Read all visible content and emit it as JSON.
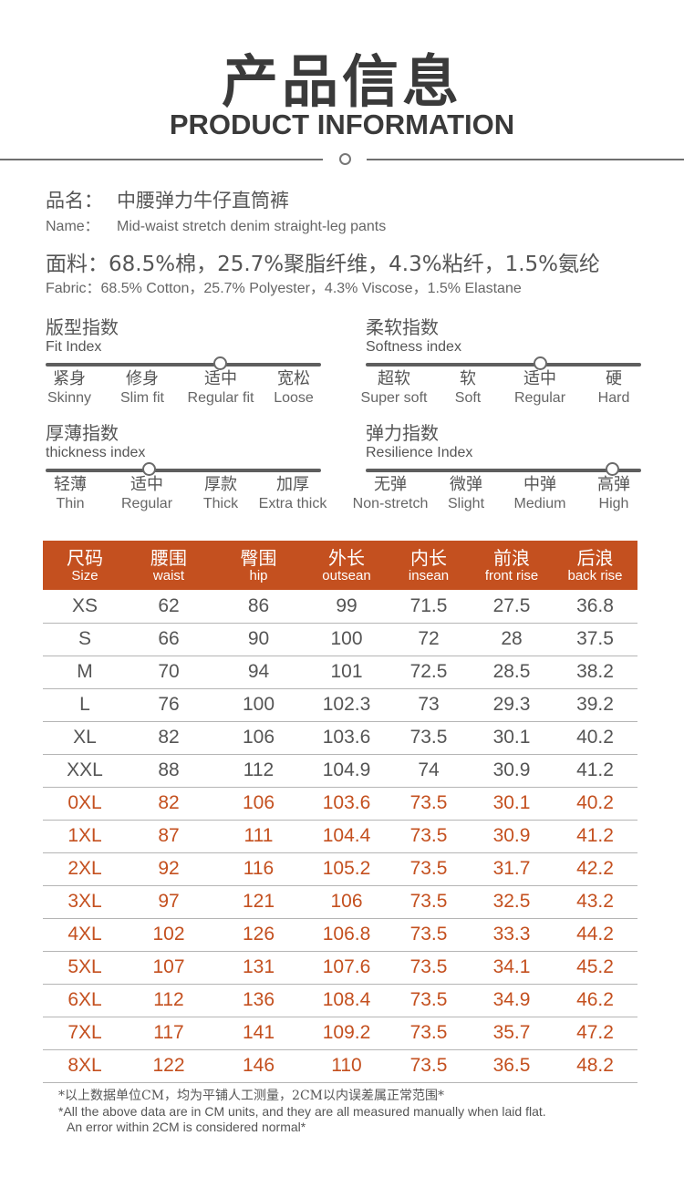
{
  "header": {
    "title_cn": "产品信息",
    "title_en": "PRODUCT INFORMATION"
  },
  "product": {
    "name_label_cn": "品名：",
    "name_value_cn": "中腰弹力牛仔直筒裤",
    "name_label_en": "Name：",
    "name_value_en": "Mid-waist stretch denim straight-leg pants",
    "fabric_cn": "面料：68.5%棉，25.7%聚脂纤维，4.3%粘纤，1.5%氨纶",
    "fabric_en": "Fabric：68.5% Cotton，25.7% Polyester，4.3% Viscose，1.5% Elastane"
  },
  "indices": [
    {
      "title_cn": "版型指数",
      "title_en": "Fit Index",
      "selected_index": 2,
      "options": [
        {
          "cn": "紧身",
          "en": "Skinny"
        },
        {
          "cn": "修身",
          "en": "Slim fit"
        },
        {
          "cn": "适中",
          "en": "Regular fit"
        },
        {
          "cn": "宽松",
          "en": "Loose"
        }
      ]
    },
    {
      "title_cn": "柔软指数",
      "title_en": "Softness index",
      "selected_index": 2,
      "options": [
        {
          "cn": "超软",
          "en": "Super soft"
        },
        {
          "cn": "软",
          "en": "Soft"
        },
        {
          "cn": "适中",
          "en": "Regular"
        },
        {
          "cn": "硬",
          "en": "Hard"
        }
      ]
    },
    {
      "title_cn": "厚薄指数",
      "title_en": "thickness index",
      "selected_index": 1,
      "options": [
        {
          "cn": "轻薄",
          "en": "Thin"
        },
        {
          "cn": "适中",
          "en": "Regular"
        },
        {
          "cn": "厚款",
          "en": "Thick"
        },
        {
          "cn": "加厚",
          "en": "Extra thick"
        }
      ]
    },
    {
      "title_cn": "弹力指数",
      "title_en": "Resilience Index",
      "selected_index": 3,
      "options": [
        {
          "cn": "无弹",
          "en": "Non-stretch"
        },
        {
          "cn": "微弹",
          "en": "Slight"
        },
        {
          "cn": "中弹",
          "en": "Medium"
        },
        {
          "cn": "高弹",
          "en": "High"
        }
      ]
    }
  ],
  "size_table": {
    "header_color": "#c4501f",
    "accent_color": "#c4501f",
    "columns": [
      {
        "cn": "尺码",
        "en": "Size"
      },
      {
        "cn": "腰围",
        "en": "waist"
      },
      {
        "cn": "臀围",
        "en": "hip"
      },
      {
        "cn": "外长",
        "en": "outsean"
      },
      {
        "cn": "内长",
        "en": "insean"
      },
      {
        "cn": "前浪",
        "en": "front rise"
      },
      {
        "cn": "后浪",
        "en": "back rise"
      }
    ],
    "rows": [
      [
        "XS",
        "62",
        "86",
        "99",
        "71.5",
        "27.5",
        "36.8"
      ],
      [
        "S",
        "66",
        "90",
        "100",
        "72",
        "28",
        "37.5"
      ],
      [
        "M",
        "70",
        "94",
        "101",
        "72.5",
        "28.5",
        "38.2"
      ],
      [
        "L",
        "76",
        "100",
        "102.3",
        "73",
        "29.3",
        "39.2"
      ],
      [
        "XL",
        "82",
        "106",
        "103.6",
        "73.5",
        "30.1",
        "40.2"
      ],
      [
        "XXL",
        "88",
        "112",
        "104.9",
        "74",
        "30.9",
        "41.2"
      ],
      [
        "0XL",
        "82",
        "106",
        "103.6",
        "73.5",
        "30.1",
        "40.2"
      ],
      [
        "1XL",
        "87",
        "111",
        "104.4",
        "73.5",
        "30.9",
        "41.2"
      ],
      [
        "2XL",
        "92",
        "116",
        "105.2",
        "73.5",
        "31.7",
        "42.2"
      ],
      [
        "3XL",
        "97",
        "121",
        "106",
        "73.5",
        "32.5",
        "43.2"
      ],
      [
        "4XL",
        "102",
        "126",
        "106.8",
        "73.5",
        "33.3",
        "44.2"
      ],
      [
        "5XL",
        "107",
        "131",
        "107.6",
        "73.5",
        "34.1",
        "45.2"
      ],
      [
        "6XL",
        "112",
        "136",
        "108.4",
        "73.5",
        "34.9",
        "46.2"
      ],
      [
        "7XL",
        "117",
        "141",
        "109.2",
        "73.5",
        "35.7",
        "47.2"
      ],
      [
        "8XL",
        "122",
        "146",
        "110",
        "73.5",
        "36.5",
        "48.2"
      ]
    ]
  },
  "notes": {
    "cn": "*以上数据单位CM，均为平铺人工测量，2CM以内误差属正常范围*",
    "en_line1": "*All the above data are in CM units, and they are all measured manually when laid flat.",
    "en_line2": "An error within 2CM is considered normal*"
  }
}
